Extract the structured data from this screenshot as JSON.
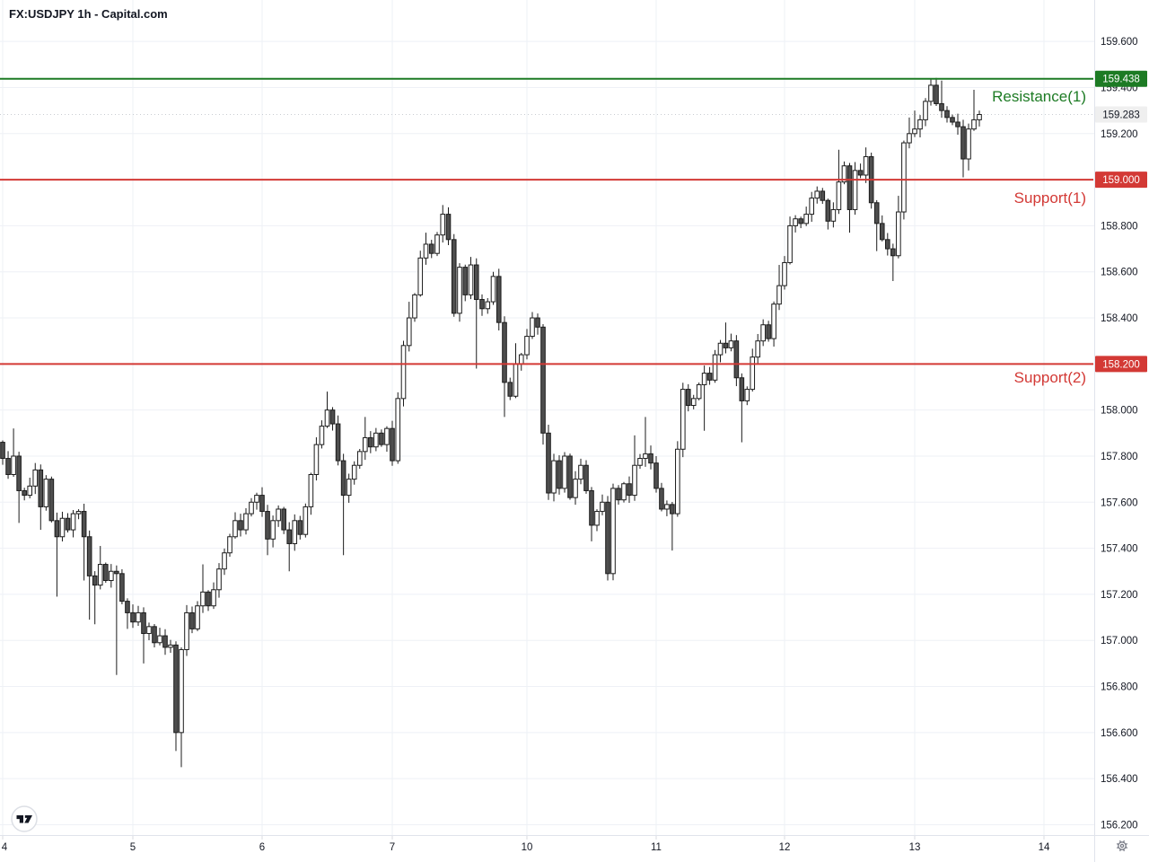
{
  "header": {
    "title": "FX:USDJPY 1h - Capital.com"
  },
  "chart_data": {
    "type": "candlestick",
    "symbol": "FX:USDJPY",
    "interval": "1h",
    "provider": "Capital.com",
    "title": "FX:USDJPY 1h - Capital.com",
    "grid": true,
    "ylim": [
      156.155,
      159.78
    ],
    "y_ticks": [
      {
        "v": 159.6,
        "label": "159.600"
      },
      {
        "v": 159.4,
        "label": "159.400"
      },
      {
        "v": 159.2,
        "label": "159.200"
      },
      {
        "v": 159.0,
        "label": "159.000"
      },
      {
        "v": 158.8,
        "label": "158.800"
      },
      {
        "v": 158.6,
        "label": "158.600"
      },
      {
        "v": 158.4,
        "label": "158.400"
      },
      {
        "v": 158.2,
        "label": "158.200"
      },
      {
        "v": 158.0,
        "label": "158.000"
      },
      {
        "v": 157.8,
        "label": "157.800"
      },
      {
        "v": 157.6,
        "label": "157.600"
      },
      {
        "v": 157.4,
        "label": "157.400"
      },
      {
        "v": 157.2,
        "label": "157.200"
      },
      {
        "v": 157.0,
        "label": "157.000"
      },
      {
        "v": 156.8,
        "label": "156.800"
      },
      {
        "v": 156.6,
        "label": "156.600"
      },
      {
        "v": 156.4,
        "label": "156.400"
      },
      {
        "v": 156.2,
        "label": "156.200"
      }
    ],
    "days": [
      {
        "label": "4",
        "x": 3
      },
      {
        "label": "5",
        "x": 148
      },
      {
        "label": "6",
        "x": 292
      },
      {
        "label": "7",
        "x": 437
      },
      {
        "label": "10",
        "x": 587
      },
      {
        "label": "11",
        "x": 731
      },
      {
        "label": "12",
        "x": 874
      },
      {
        "label": "13",
        "x": 1019
      },
      {
        "label": "14",
        "x": 1163
      }
    ],
    "levels": [
      {
        "name": "Resistance(1)",
        "price": 159.438,
        "price_label": "159.438",
        "color": "#1d7b24",
        "kind": "resistance"
      },
      {
        "name": "Support(1)",
        "price": 159.0,
        "price_label": "159.000",
        "color": "#d33935",
        "kind": "support"
      },
      {
        "name": "Support(2)",
        "price": 158.2,
        "price_label": "158.200",
        "color": "#d33935",
        "kind": "support"
      }
    ],
    "last_price": 159.283,
    "last_price_label": "159.283",
    "first_open": 157.86,
    "closes": [
      157.79,
      157.72,
      157.8,
      157.65,
      157.63,
      157.67,
      157.74,
      157.58,
      157.7,
      157.52,
      157.45,
      157.53,
      157.48,
      157.55,
      157.56,
      157.45,
      157.28,
      157.24,
      157.33,
      157.26,
      157.3,
      157.29,
      157.17,
      157.12,
      157.08,
      157.12,
      157.03,
      157.06,
      156.99,
      157.02,
      156.97,
      156.98,
      156.6,
      156.96,
      157.12,
      157.05,
      157.15,
      157.21,
      157.15,
      157.22,
      157.31,
      157.38,
      157.45,
      157.52,
      157.48,
      157.55,
      157.6,
      157.63,
      157.56,
      157.44,
      157.52,
      157.57,
      157.48,
      157.42,
      157.52,
      157.46,
      157.58,
      157.72,
      157.85,
      157.93,
      158.0,
      157.94,
      157.78,
      157.63,
      157.7,
      157.76,
      157.82,
      157.88,
      157.84,
      157.9,
      157.85,
      157.92,
      157.78,
      158.05,
      158.28,
      158.4,
      158.5,
      158.66,
      158.72,
      158.68,
      158.76,
      158.85,
      158.74,
      158.42,
      158.62,
      158.5,
      158.63,
      158.48,
      158.44,
      158.47,
      158.58,
      158.38,
      158.12,
      158.06,
      158.2,
      158.24,
      158.32,
      158.4,
      158.36,
      157.9,
      157.64,
      157.78,
      157.66,
      157.8,
      157.62,
      157.7,
      157.76,
      157.65,
      157.5,
      157.56,
      157.6,
      157.29,
      157.66,
      157.61,
      157.68,
      157.63,
      157.76,
      157.79,
      157.81,
      157.77,
      157.66,
      157.57,
      157.59,
      157.55,
      157.83,
      158.09,
      158.02,
      158.05,
      158.11,
      158.16,
      158.13,
      158.24,
      158.29,
      158.27,
      158.3,
      158.14,
      158.04,
      158.09,
      158.23,
      158.3,
      158.37,
      158.31,
      158.46,
      158.54,
      158.64,
      158.8,
      158.83,
      158.81,
      158.85,
      158.92,
      158.95,
      158.91,
      158.82,
      158.87,
      158.99,
      159.06,
      158.87,
      159.04,
      159.02,
      159.1,
      158.9,
      158.81,
      158.74,
      158.7,
      158.67,
      158.86,
      159.16,
      159.2,
      159.22,
      159.26,
      159.34,
      159.41,
      159.33,
      159.3,
      159.27,
      159.25,
      159.23,
      159.09,
      159.22,
      159.26,
      159.283
    ],
    "wick_overrides": {
      "2": {
        "h": 157.92
      },
      "3": {
        "l": 157.51
      },
      "7": {
        "l": 157.48
      },
      "10": {
        "l": 157.19
      },
      "15": {
        "l": 157.26
      },
      "16": {
        "l": 157.09
      },
      "17": {
        "l": 157.07
      },
      "18": {
        "h": 157.41
      },
      "21": {
        "l": 156.85
      },
      "23": {
        "l": 157.05
      },
      "26": {
        "l": 156.9
      },
      "32": {
        "l": 156.52
      },
      "33": {
        "l": 156.45
      },
      "37": {
        "h": 157.33
      },
      "49": {
        "l": 157.37
      },
      "53": {
        "l": 157.3
      },
      "60": {
        "h": 158.08
      },
      "63": {
        "l": 157.37
      },
      "67": {
        "h": 157.97
      },
      "75": {
        "h": 158.47
      },
      "78": {
        "h": 158.77
      },
      "81": {
        "h": 158.89
      },
      "82": {
        "h": 158.87
      },
      "87": {
        "l": 158.18
      },
      "90": {
        "h": 158.6
      },
      "92": {
        "l": 157.97
      },
      "94": {
        "h": 158.29
      },
      "99": {
        "l": 157.85
      },
      "100": {
        "l": 157.61
      },
      "108": {
        "l": 157.43
      },
      "111": {
        "l": 157.26
      },
      "116": {
        "h": 157.89
      },
      "118": {
        "h": 157.97
      },
      "123": {
        "l": 157.39
      },
      "129": {
        "l": 157.91
      },
      "133": {
        "h": 158.38
      },
      "136": {
        "l": 157.86
      },
      "138": {
        "h": 158.25
      },
      "143": {
        "h": 158.63
      },
      "145": {
        "h": 158.84
      },
      "150": {
        "h": 158.97
      },
      "154": {
        "h": 159.13
      },
      "156": {
        "l": 158.77
      },
      "159": {
        "h": 159.14
      },
      "161": {
        "l": 158.69
      },
      "164": {
        "l": 158.56
      },
      "165": {
        "h": 158.93
      },
      "167": {
        "h": 159.27
      },
      "168": {
        "h": 159.3
      },
      "171": {
        "h": 159.435
      },
      "172": {
        "h": 159.43
      },
      "173": {
        "h": 159.43
      },
      "177": {
        "l": 159.01
      },
      "178": {
        "l": 159.04
      },
      "179": {
        "h": 159.39
      },
      "180": {
        "h": 159.3
      }
    },
    "colors": {
      "up_fill": "#ffffff",
      "down_fill": "#4e4e4e",
      "candle_border": "#1b1b1b",
      "grid": "#eef1f6",
      "axis_text": "#131722",
      "separator": "#e0e3eb",
      "resistance_green": "#1d7b24",
      "support_red": "#d33935",
      "last_price_tag_bg": "#efefef"
    }
  },
  "branding": {
    "logo": "tradingview-logo",
    "settings": "gear-icon"
  }
}
